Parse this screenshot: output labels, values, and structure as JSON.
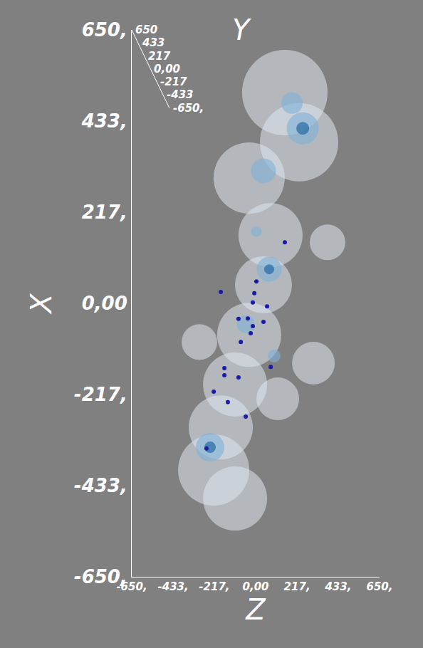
{
  "chart_data": {
    "type": "scatter",
    "x_label": "Z",
    "y_label": "X",
    "depth_label": "Y",
    "xlim": [
      -650,
      650
    ],
    "xticks": [
      {
        "value": -650,
        "label": "-650,"
      },
      {
        "value": -433,
        "label": "-433,"
      },
      {
        "value": -217,
        "label": "-217,"
      },
      {
        "value": 0,
        "label": "0,00"
      },
      {
        "value": 217,
        "label": "217,"
      },
      {
        "value": 433,
        "label": "433,"
      },
      {
        "value": 650,
        "label": "650,"
      }
    ],
    "ylim": [
      -650,
      650
    ],
    "yticks": [
      {
        "value": 650,
        "label": "650,"
      },
      {
        "value": 433,
        "label": "433,"
      },
      {
        "value": 217,
        "label": "217,"
      },
      {
        "value": 0,
        "label": "0,00"
      },
      {
        "value": -217,
        "label": "-217,"
      },
      {
        "value": -433,
        "label": "-433,"
      },
      {
        "value": -650,
        "label": "-650,"
      }
    ],
    "depth_lim": [
      -650,
      650
    ],
    "depth_ticks": [
      650,
      433,
      217,
      {
        "value": 0,
        "label": "0,00"
      },
      -217,
      -433,
      {
        "value": -650,
        "label": "-650,"
      }
    ],
    "grid": false,
    "series": [
      {
        "color": "#dfe6ee",
        "marker": "circle",
        "x": [
          153,
          228,
          -34,
          78,
          41,
          -34,
          -108,
          -183,
          -220,
          -108,
          303,
          377,
          -295,
          116
        ],
        "y": [
          501,
          383,
          298,
          162,
          44,
          -75,
          -193,
          -295,
          -396,
          -464,
          -142,
          145,
          -92,
          -227
        ],
        "sizes": [
          120,
          110,
          100,
          90,
          80,
          90,
          90,
          90,
          100,
          90,
          60,
          50,
          50,
          60
        ]
      },
      {
        "color": "#7fb0d8",
        "marker": "circle",
        "x": [
          247,
          41,
          71,
          -239,
          -52,
          97,
          191,
          4
        ],
        "y": [
          416,
          315,
          81,
          -342,
          -49,
          -125,
          476,
          171
        ],
        "sizes": [
          45,
          35,
          35,
          40,
          25,
          18,
          30,
          15
        ]
      },
      {
        "color": "#2c6fa8",
        "marker": "circle",
        "x": [
          247,
          71,
          -239
        ],
        "y": [
          416,
          81,
          -342
        ],
        "sizes": [
          18,
          14,
          16
        ]
      },
      {
        "color": "#1a1aa8",
        "marker": "circle",
        "x": [
          -183,
          153,
          4,
          -7,
          -15,
          60,
          -90,
          -41,
          -15,
          41,
          -26,
          -78,
          -164,
          -164,
          -90,
          -220,
          -146,
          -52,
          -258,
          79
        ],
        "y": [
          27,
          145,
          52,
          24,
          2,
          -7,
          -37,
          -36,
          -54,
          -44,
          -71,
          -92,
          -154,
          -171,
          -176,
          -210,
          -235,
          -269,
          -345,
          -151
        ],
        "sizes": [
          6,
          6,
          6,
          6,
          6,
          6,
          6,
          6,
          6,
          6,
          6,
          6,
          6,
          6,
          6,
          6,
          6,
          6,
          6,
          6
        ]
      }
    ]
  }
}
